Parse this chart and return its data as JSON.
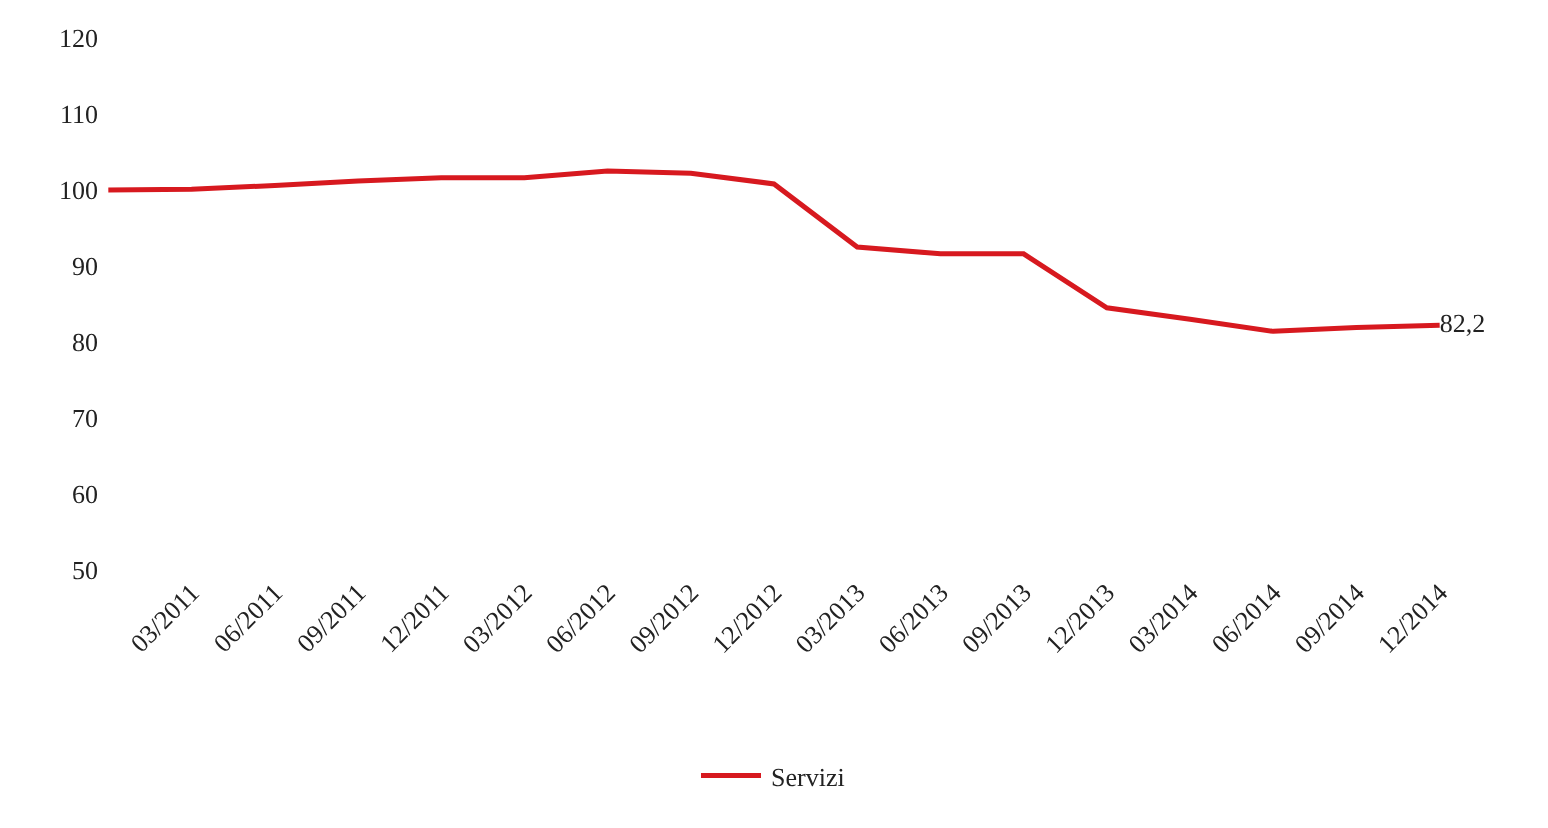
{
  "chart_data": {
    "type": "line",
    "categories": [
      null,
      "03/2011",
      "06/2011",
      "09/2011",
      "12/2011",
      "03/2012",
      "06/2012",
      "09/2012",
      "12/2012",
      "03/2013",
      "06/2013",
      "09/2013",
      "12/2013",
      "03/2014",
      "06/2014",
      "09/2014",
      "12/2014"
    ],
    "series": [
      {
        "name": "Servizi",
        "color": "#d7191f",
        "values": [
          100,
          100.1,
          100.6,
          101.2,
          101.6,
          101.6,
          102.5,
          102.2,
          100.8,
          92.5,
          91.6,
          91.6,
          84.5,
          83.0,
          81.4,
          81.9,
          82.2
        ],
        "value_labels": [
          null,
          null,
          null,
          null,
          null,
          null,
          null,
          null,
          null,
          null,
          null,
          null,
          null,
          null,
          null,
          null,
          "82,2"
        ]
      }
    ],
    "ylim": [
      50,
      120
    ],
    "yticks": [
      50,
      60,
      70,
      80,
      90,
      100,
      110,
      120
    ],
    "legend": "bottom",
    "marker": "none",
    "line_style": "solid"
  }
}
